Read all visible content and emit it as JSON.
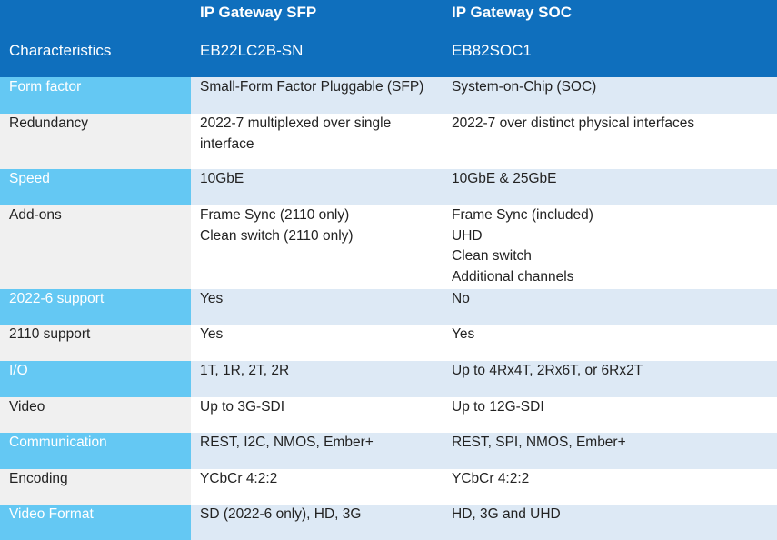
{
  "header": {
    "characteristics_label": "Characteristics",
    "product_a": {
      "title": "IP Gateway SFP",
      "model": "EB22LC2B-SN"
    },
    "product_b": {
      "title": "IP Gateway SOC",
      "model": "EB82SOC1"
    }
  },
  "rows": [
    {
      "characteristic": "Form factor",
      "a": [
        "Small-Form Factor Pluggable (SFP)"
      ],
      "b": [
        "System-on-Chip (SOC)"
      ]
    },
    {
      "characteristic": "Redundancy",
      "a": [
        "2022-7 multiplexed over single interface"
      ],
      "b": [
        "2022-7 over distinct physical interfaces"
      ]
    },
    {
      "characteristic": "Speed",
      "a": [
        "10GbE"
      ],
      "b": [
        "10GbE & 25GbE"
      ]
    },
    {
      "characteristic": "Add-ons",
      "a": [
        "Frame Sync (2110 only)",
        "Clean switch (2110 only)"
      ],
      "b": [
        "Frame Sync (included)",
        "UHD",
        "Clean switch",
        "Additional channels"
      ]
    },
    {
      "characteristic": "2022-6 support",
      "a": [
        "Yes"
      ],
      "b": [
        "No"
      ]
    },
    {
      "characteristic": "2110 support",
      "a": [
        "Yes"
      ],
      "b": [
        "Yes"
      ]
    },
    {
      "characteristic": "I/O",
      "a": [
        "1T, 1R, 2T, 2R"
      ],
      "b": [
        "Up to 4Rx4T, 2Rx6T, or 6Rx2T"
      ]
    },
    {
      "characteristic": "Video",
      "a": [
        "Up to 3G-SDI"
      ],
      "b": [
        "Up to 12G-SDI"
      ]
    },
    {
      "characteristic": "Communication",
      "a": [
        "REST, I2C, NMOS, Ember+"
      ],
      "b": [
        "REST, SPI, NMOS, Ember+"
      ]
    },
    {
      "characteristic": "Encoding",
      "a": [
        "YCbCr 4:2:2"
      ],
      "b": [
        "YCbCr 4:2:2"
      ]
    },
    {
      "characteristic": "Video Format",
      "a": [
        "SD (2022-6 only), HD, 3G"
      ],
      "b": [
        "HD, 3G and UHD"
      ]
    }
  ],
  "colors": {
    "header_bg": "#0f6fbd",
    "accent_char_bg": "#64c8f3",
    "alt_row_bg": "#dde9f5",
    "plain_char_bg": "#f0f0f0"
  }
}
